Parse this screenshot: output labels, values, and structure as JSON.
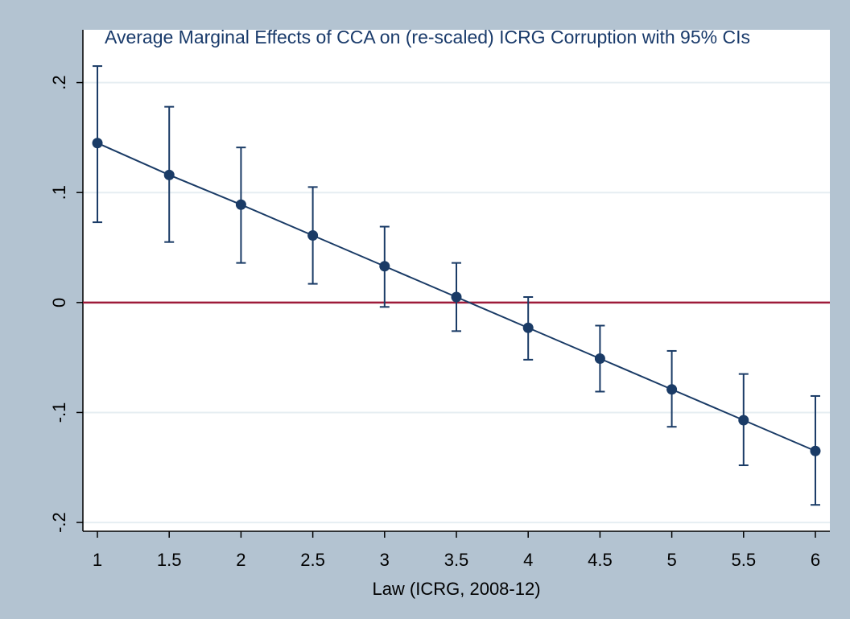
{
  "chart_data": {
    "type": "errorbar-line",
    "title": "Average Marginal Effects of CCA on (re-scaled) ICRG Corruption with 95% CIs",
    "x_label": "Law (ICRG, 2008-12)",
    "x": [
      1,
      1.5,
      2,
      2.5,
      3,
      3.5,
      4,
      4.5,
      5,
      5.5,
      6
    ],
    "series": [
      {
        "color": "#1a3b66",
        "values": [
          0.145,
          0.116,
          0.089,
          0.061,
          0.033,
          0.005,
          -0.023,
          -0.051,
          -0.079,
          -0.107,
          -0.135
        ],
        "lower": [
          0.073,
          0.055,
          0.036,
          0.017,
          -0.004,
          -0.026,
          -0.052,
          -0.081,
          -0.113,
          -0.148,
          -0.184
        ],
        "upper": [
          0.215,
          0.178,
          0.141,
          0.105,
          0.069,
          0.036,
          0.005,
          -0.021,
          -0.044,
          -0.065,
          -0.085
        ]
      }
    ],
    "xlim": [
      0.899,
      6.101
    ],
    "ylim": [
      -0.208,
      0.248
    ],
    "xticks": [
      1,
      1.5,
      2,
      2.5,
      3,
      3.5,
      4,
      4.5,
      5,
      5.5,
      6
    ],
    "yticks": [
      {
        "value": -0.2,
        "label": "-.2"
      },
      {
        "value": -0.1,
        "label": "-.1"
      },
      0,
      {
        "value": 0.1,
        "label": ".1"
      },
      {
        "value": 0.2,
        "label": ".2"
      }
    ],
    "grid": true,
    "reference_line": {
      "value": 0,
      "color": "#9e1b3a"
    }
  }
}
